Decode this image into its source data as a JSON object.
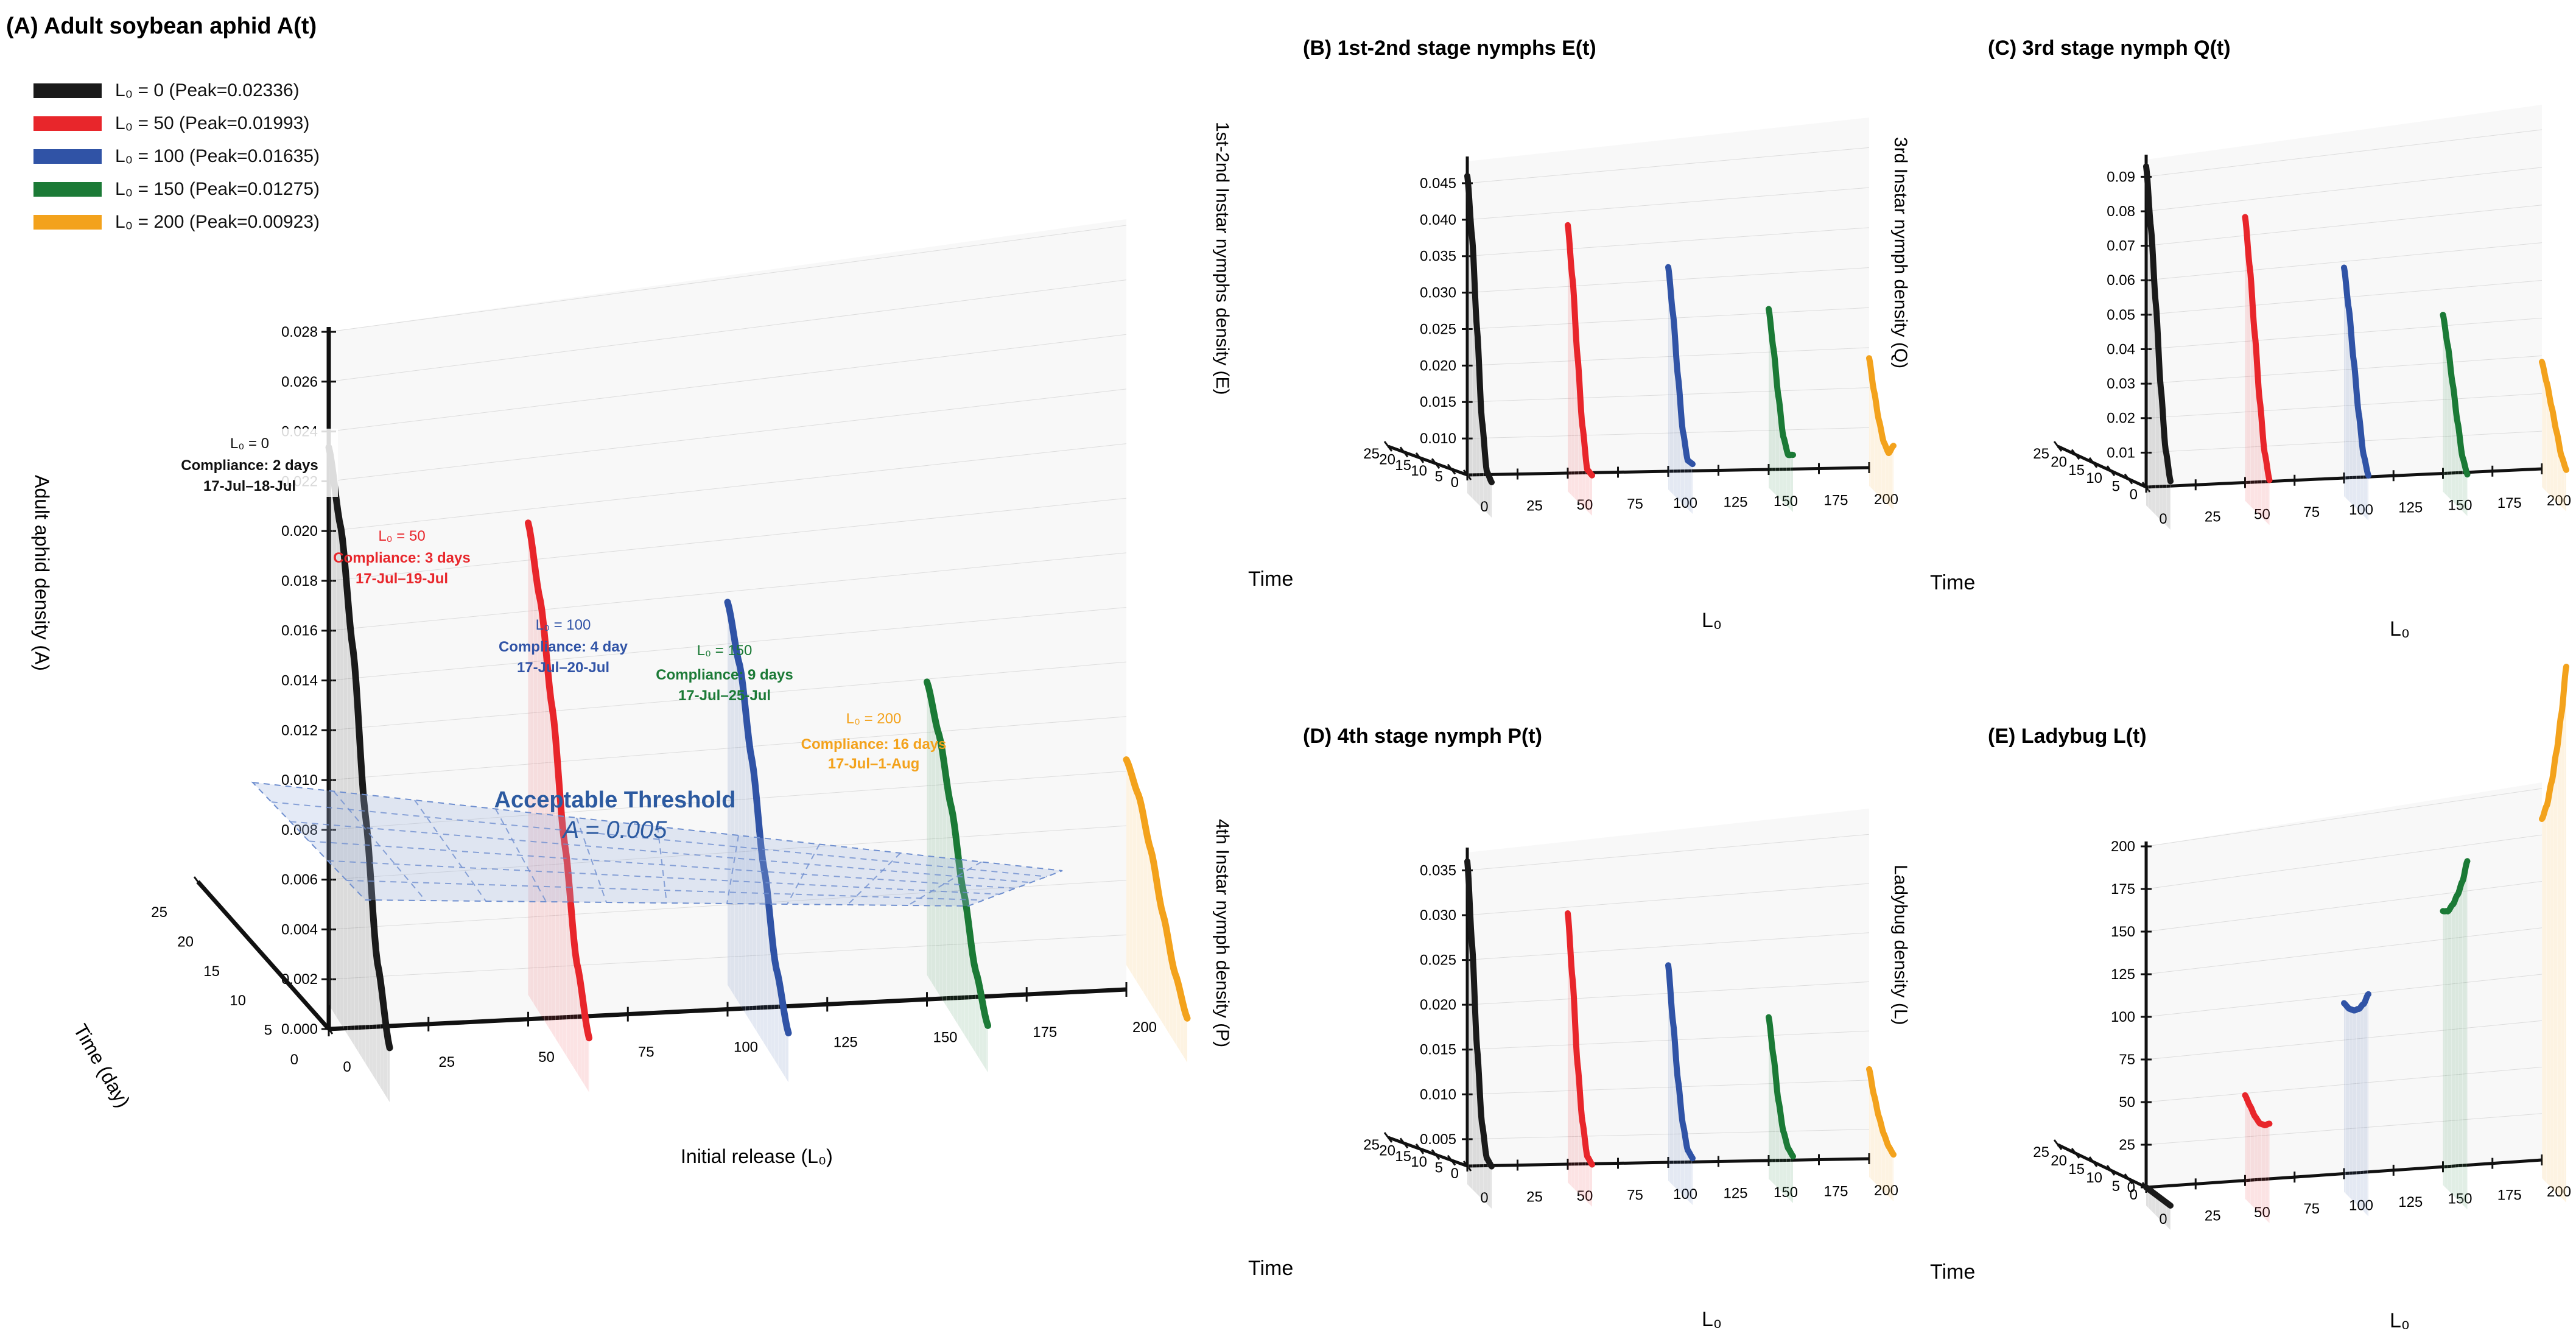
{
  "colors": [
    "#1a1a1a",
    "#e8262b",
    "#3053a6",
    "#1b7a36",
    "#f3a21c"
  ],
  "legend": [
    {
      "label": "L₀ = 0 (Peak=0.02336)"
    },
    {
      "label": "L₀ = 50 (Peak=0.01993)"
    },
    {
      "label": "L₀ = 100 (Peak=0.01635)"
    },
    {
      "label": "L₀ = 150 (Peak=0.01275)"
    },
    {
      "label": "L₀ = 200 (Peak=0.00923)"
    }
  ],
  "threshold": {
    "title": "Acceptable Threshold",
    "value_label": "A = 0.005",
    "value": 0.005
  },
  "annotations": [
    {
      "l0": "L₀ = 0",
      "compliance": "Compliance: 2 days",
      "dates": "17-Jul–18-Jul"
    },
    {
      "l0": "L₀ = 50",
      "compliance": "Compliance: 3 days",
      "dates": "17-Jul–19-Jul"
    },
    {
      "l0": "L₀ = 100",
      "compliance": "Compliance: 4 day",
      "dates": "17-Jul–20-Jul"
    },
    {
      "l0": "L₀ = 150",
      "compliance": "Compliance: 9 days",
      "dates": "17-Jul–25-Jul"
    },
    {
      "l0": "L₀ = 200",
      "compliance": "Compliance: 16 days",
      "dates": "17-Jul–1-Aug"
    }
  ],
  "chart_data": [
    {
      "id": "A",
      "type": "line",
      "title": "(A) Adult soybean aphid A(t)",
      "zlabel": "Adult aphid density (A)",
      "xlabel": "Initial release (L₀)",
      "ylabel": "Time (day)",
      "z_ticks": [
        "0.000",
        "0.002",
        "0.004",
        "0.006",
        "0.008",
        "0.010",
        "0.012",
        "0.014",
        "0.016",
        "0.018",
        "0.020",
        "0.022",
        "0.024",
        "0.026",
        "0.028"
      ],
      "x_ticks": [
        "0",
        "25",
        "50",
        "75",
        "100",
        "125",
        "150",
        "175",
        "200"
      ],
      "t_ticks": [
        "0",
        "5",
        "10",
        "15",
        "20",
        "25"
      ],
      "zlim": [
        0,
        0.028
      ],
      "tlim": [
        0,
        25
      ],
      "xlim": [
        0,
        200
      ],
      "series": [
        {
          "l0": 0,
          "values": [
            0.02336,
            0.0205,
            0.016,
            0.0098,
            0.0042,
            0.0012
          ]
        },
        {
          "l0": 50,
          "values": [
            0.01993,
            0.0172,
            0.0132,
            0.0082,
            0.0038,
            0.0012
          ]
        },
        {
          "l0": 100,
          "values": [
            0.01635,
            0.0142,
            0.0108,
            0.0068,
            0.0032,
            0.001
          ]
        },
        {
          "l0": 150,
          "values": [
            0.01275,
            0.011,
            0.0085,
            0.0055,
            0.0027,
            0.0009
          ]
        },
        {
          "l0": 200,
          "values": [
            0.00923,
            0.0082,
            0.0064,
            0.0042,
            0.0022,
            0.0008
          ]
        }
      ]
    },
    {
      "id": "E",
      "type": "line",
      "title": "(B) 1st-2nd stage nymphs E(t)",
      "zlabel": "1st-2nd Instar nymphs density (E)",
      "xlabel": "L₀",
      "ylabel": "Time",
      "z_ticks": [
        "0.010",
        "0.015",
        "0.020",
        "0.025",
        "0.030",
        "0.035",
        "0.040",
        "0.045"
      ],
      "x_ticks": [
        "0",
        "25",
        "50",
        "75",
        "100",
        "125",
        "150",
        "175",
        "200"
      ],
      "t_ticks": [
        "0",
        "5",
        "10",
        "15",
        "20",
        "25"
      ],
      "zlim": [
        0.005,
        0.048
      ],
      "series": [
        {
          "l0": 0,
          "values": [
            0.046,
            0.038,
            0.026,
            0.014,
            0.0075,
            0.0065
          ]
        },
        {
          "l0": 50,
          "values": [
            0.039,
            0.032,
            0.022,
            0.013,
            0.0075,
            0.0072
          ]
        },
        {
          "l0": 100,
          "values": [
            0.033,
            0.027,
            0.019,
            0.012,
            0.0085,
            0.0085
          ]
        },
        {
          "l0": 150,
          "values": [
            0.027,
            0.022,
            0.016,
            0.011,
            0.009,
            0.0095
          ]
        },
        {
          "l0": 200,
          "values": [
            0.02,
            0.016,
            0.0125,
            0.01,
            0.009,
            0.0105
          ]
        }
      ]
    },
    {
      "id": "Q",
      "type": "line",
      "title": "(C) 3rd stage nymph Q(t)",
      "zlabel": "3rd Instar nymph density (Q)",
      "xlabel": "L₀",
      "ylabel": "Time",
      "z_ticks": [
        "0.01",
        "0.02",
        "0.03",
        "0.04",
        "0.05",
        "0.06",
        "0.07",
        "0.08",
        "0.09"
      ],
      "x_ticks": [
        "0",
        "25",
        "50",
        "75",
        "100",
        "125",
        "150",
        "175",
        "200"
      ],
      "t_ticks": [
        "0",
        "5",
        "10",
        "15",
        "20",
        "25"
      ],
      "zlim": [
        0.0,
        0.095
      ],
      "series": [
        {
          "l0": 0,
          "values": [
            0.093,
            0.076,
            0.055,
            0.032,
            0.015,
            0.007
          ]
        },
        {
          "l0": 50,
          "values": [
            0.077,
            0.063,
            0.045,
            0.027,
            0.013,
            0.006
          ]
        },
        {
          "l0": 100,
          "values": [
            0.061,
            0.05,
            0.036,
            0.022,
            0.011,
            0.006
          ]
        },
        {
          "l0": 150,
          "values": [
            0.046,
            0.038,
            0.028,
            0.018,
            0.009,
            0.005
          ]
        },
        {
          "l0": 200,
          "values": [
            0.031,
            0.026,
            0.02,
            0.014,
            0.008,
            0.005
          ]
        }
      ]
    },
    {
      "id": "P",
      "type": "line",
      "title": "(D) 4th stage nymph P(t)",
      "zlabel": "4th Instar nymph density (P)",
      "xlabel": "L₀",
      "ylabel": "Time",
      "z_ticks": [
        "0.005",
        "0.010",
        "0.015",
        "0.020",
        "0.025",
        "0.030",
        "0.035"
      ],
      "x_ticks": [
        "0",
        "25",
        "50",
        "75",
        "100",
        "125",
        "150",
        "175",
        "200"
      ],
      "t_ticks": [
        "0",
        "5",
        "10",
        "15",
        "20",
        "25"
      ],
      "zlim": [
        0.002,
        0.037
      ],
      "series": [
        {
          "l0": 0,
          "values": [
            0.036,
            0.027,
            0.016,
            0.008,
            0.0045,
            0.004
          ]
        },
        {
          "l0": 50,
          "values": [
            0.03,
            0.023,
            0.014,
            0.008,
            0.0045,
            0.004
          ]
        },
        {
          "l0": 100,
          "values": [
            0.024,
            0.018,
            0.012,
            0.0075,
            0.005,
            0.0045
          ]
        },
        {
          "l0": 150,
          "values": [
            0.018,
            0.014,
            0.0095,
            0.0065,
            0.005,
            0.0045
          ]
        },
        {
          "l0": 200,
          "values": [
            0.012,
            0.0095,
            0.0075,
            0.006,
            0.005,
            0.0045
          ]
        }
      ]
    },
    {
      "id": "L",
      "type": "line",
      "title": "(E) Ladybug L(t)",
      "zlabel": "Ladybug density (L)",
      "xlabel": "L₀",
      "ylabel": "Time",
      "z_ticks": [
        "0",
        "25",
        "50",
        "75",
        "100",
        "125",
        "150",
        "175",
        "200"
      ],
      "x_ticks": [
        "0",
        "25",
        "50",
        "75",
        "100",
        "125",
        "150",
        "175",
        "200"
      ],
      "t_ticks": [
        "0",
        "5",
        "10",
        "15",
        "20",
        "25"
      ],
      "zlim": [
        0,
        200
      ],
      "series": [
        {
          "l0": 0,
          "values": [
            0,
            0,
            0,
            0,
            0,
            0
          ]
        },
        {
          "l0": 50,
          "values": [
            50,
            46,
            42,
            40,
            41,
            44
          ]
        },
        {
          "l0": 100,
          "values": [
            100,
            99,
            100,
            103,
            108,
            116
          ]
        },
        {
          "l0": 150,
          "values": [
            150,
            152,
            158,
            166,
            176,
            190
          ]
        },
        {
          "l0": 200,
          "values": [
            200,
            210,
            226,
            246,
            270,
            300
          ]
        }
      ]
    }
  ]
}
